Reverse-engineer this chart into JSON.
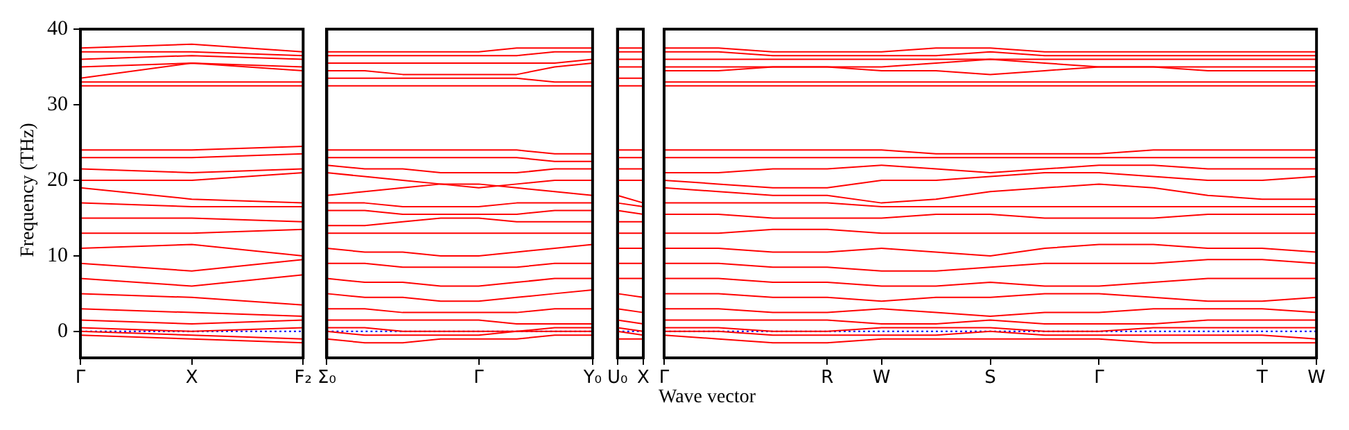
{
  "chart_data": [
    {
      "type": "line",
      "ylabel": "Frequency (THz)",
      "categories": [
        "Γ",
        "X",
        "F₂"
      ],
      "ylim": [
        -3.5,
        40
      ],
      "yticks": [
        0,
        10,
        20,
        30,
        40
      ],
      "legend": false,
      "marker": "none",
      "line_style": "solid",
      "ref_lines": [
        {
          "axis": "y",
          "value": 0,
          "color": "#0000ff",
          "line_style": "dotted"
        }
      ],
      "series": [
        {
          "color": "#ff0000",
          "values": [
            37.5,
            38,
            37
          ]
        },
        {
          "color": "#ff0000",
          "values": [
            37,
            37,
            36.5
          ]
        },
        {
          "color": "#ff0000",
          "values": [
            36,
            36.5,
            36
          ]
        },
        {
          "color": "#ff0000",
          "values": [
            35,
            35.5,
            35
          ]
        },
        {
          "color": "#ff0000",
          "values": [
            33.5,
            35.5,
            34.5
          ]
        },
        {
          "color": "#ff0000",
          "values": [
            33,
            33,
            33
          ]
        },
        {
          "color": "#ff0000",
          "values": [
            32.5,
            32.5,
            32.5
          ]
        },
        {
          "color": "#ff0000",
          "values": [
            24,
            24,
            24.5
          ]
        },
        {
          "color": "#ff0000",
          "values": [
            23,
            23,
            23.5
          ]
        },
        {
          "color": "#ff0000",
          "values": [
            21.5,
            21,
            21.5
          ]
        },
        {
          "color": "#ff0000",
          "values": [
            20,
            20,
            21
          ]
        },
        {
          "color": "#ff0000",
          "values": [
            19,
            17.5,
            17
          ]
        },
        {
          "color": "#ff0000",
          "values": [
            17,
            16.5,
            16.5
          ]
        },
        {
          "color": "#ff0000",
          "values": [
            15,
            15,
            14.5
          ]
        },
        {
          "color": "#ff0000",
          "values": [
            13,
            13,
            13.5
          ]
        },
        {
          "color": "#ff0000",
          "values": [
            11,
            11.5,
            10
          ]
        },
        {
          "color": "#ff0000",
          "values": [
            9,
            8,
            9.5
          ]
        },
        {
          "color": "#ff0000",
          "values": [
            7,
            6,
            7.5
          ]
        },
        {
          "color": "#ff0000",
          "values": [
            5,
            4.5,
            3.5
          ]
        },
        {
          "color": "#ff0000",
          "values": [
            3,
            2.5,
            2
          ]
        },
        {
          "color": "#ff0000",
          "values": [
            1.5,
            1,
            1.5
          ]
        },
        {
          "color": "#ff0000",
          "values": [
            0.5,
            0,
            0.5
          ]
        },
        {
          "color": "#ff0000",
          "values": [
            0,
            -0.5,
            -1
          ]
        },
        {
          "color": "#ff0000",
          "values": [
            -0.5,
            -1,
            -1.5
          ]
        }
      ]
    },
    {
      "type": "line",
      "categories": [
        "Σ₀",
        null,
        null,
        null,
        "Γ",
        null,
        null,
        "Y₀"
      ],
      "ylim": [
        -3.5,
        40
      ],
      "yticks": [
        0,
        10,
        20,
        30,
        40
      ],
      "tick_labels": "x",
      "legend": false,
      "marker": "none",
      "line_style": "solid",
      "ref_lines": [
        {
          "axis": "y",
          "value": 0,
          "color": "#0000ff",
          "line_style": "dotted"
        }
      ],
      "series": [
        {
          "color": "#ff0000",
          "values": [
            37,
            37,
            37,
            37,
            37,
            37.5,
            37.5,
            37.5
          ]
        },
        {
          "color": "#ff0000",
          "values": [
            36.5,
            36.5,
            36.5,
            36.5,
            36.5,
            36.5,
            37,
            37
          ]
        },
        {
          "color": "#ff0000",
          "values": [
            35.5,
            35.5,
            35.5,
            35.5,
            35.5,
            35.5,
            35.5,
            36
          ]
        },
        {
          "color": "#ff0000",
          "values": [
            34.5,
            34.5,
            34,
            34,
            34,
            34,
            35,
            35.5
          ]
        },
        {
          "color": "#ff0000",
          "values": [
            33.5,
            33.5,
            33.5,
            33.5,
            33.5,
            33.5,
            33,
            33
          ]
        },
        {
          "color": "#ff0000",
          "values": [
            32.5,
            32.5,
            32.5,
            32.5,
            32.5,
            32.5,
            32.5,
            32.5
          ]
        },
        {
          "color": "#ff0000",
          "values": [
            24,
            24,
            24,
            24,
            24,
            24,
            23.5,
            23.5
          ]
        },
        {
          "color": "#ff0000",
          "values": [
            23,
            23,
            23,
            23,
            23,
            23,
            22.5,
            22.5
          ]
        },
        {
          "color": "#ff0000",
          "values": [
            22,
            21.5,
            21.5,
            21,
            21,
            21,
            21.5,
            21.5
          ]
        },
        {
          "color": "#ff0000",
          "values": [
            21,
            20.5,
            20,
            19.5,
            19,
            19.5,
            20,
            20
          ]
        },
        {
          "color": "#ff0000",
          "values": [
            18,
            18.5,
            19,
            19.5,
            19.5,
            19,
            18.5,
            18
          ]
        },
        {
          "color": "#ff0000",
          "values": [
            17,
            17,
            16.5,
            16.5,
            16.5,
            17,
            17,
            17
          ]
        },
        {
          "color": "#ff0000",
          "values": [
            16,
            16,
            15.5,
            15.5,
            15.5,
            15.5,
            16,
            16
          ]
        },
        {
          "color": "#ff0000",
          "values": [
            14,
            14,
            14.5,
            15,
            15,
            14.5,
            14.5,
            14.5
          ]
        },
        {
          "color": "#ff0000",
          "values": [
            13,
            13,
            13,
            13,
            13,
            13,
            13,
            13
          ]
        },
        {
          "color": "#ff0000",
          "values": [
            11,
            10.5,
            10.5,
            10,
            10,
            10.5,
            11,
            11.5
          ]
        },
        {
          "color": "#ff0000",
          "values": [
            9,
            9,
            8.5,
            8.5,
            8.5,
            8.5,
            9,
            9
          ]
        },
        {
          "color": "#ff0000",
          "values": [
            7,
            6.5,
            6.5,
            6,
            6,
            6.5,
            7,
            7
          ]
        },
        {
          "color": "#ff0000",
          "values": [
            5,
            4.5,
            4.5,
            4,
            4,
            4.5,
            5,
            5.5
          ]
        },
        {
          "color": "#ff0000",
          "values": [
            3,
            3,
            2.5,
            2.5,
            2.5,
            2.5,
            3,
            3
          ]
        },
        {
          "color": "#ff0000",
          "values": [
            1.5,
            1.5,
            1.5,
            1.5,
            1.5,
            1,
            1,
            1
          ]
        },
        {
          "color": "#ff0000",
          "values": [
            0.5,
            0.5,
            0,
            0,
            0,
            0,
            0.5,
            0.5
          ]
        },
        {
          "color": "#ff0000",
          "values": [
            0,
            -0.5,
            -0.5,
            -0.5,
            -0.5,
            0,
            0,
            0
          ]
        },
        {
          "color": "#ff0000",
          "values": [
            -1,
            -1.5,
            -1.5,
            -1,
            -1,
            -1,
            -0.5,
            -0.5
          ]
        }
      ]
    },
    {
      "type": "line",
      "categories": [
        "U₀",
        "X"
      ],
      "ylim": [
        -3.5,
        40
      ],
      "yticks": [
        0,
        10,
        20,
        30,
        40
      ],
      "tick_labels": "x",
      "legend": false,
      "marker": "none",
      "line_style": "solid",
      "ref_lines": [
        {
          "axis": "y",
          "value": 0,
          "color": "#0000ff",
          "line_style": "dotted"
        }
      ],
      "series": [
        {
          "color": "#ff0000",
          "values": [
            37.5,
            37.5
          ]
        },
        {
          "color": "#ff0000",
          "values": [
            37,
            37
          ]
        },
        {
          "color": "#ff0000",
          "values": [
            36,
            36
          ]
        },
        {
          "color": "#ff0000",
          "values": [
            35,
            35
          ]
        },
        {
          "color": "#ff0000",
          "values": [
            33.5,
            33.5
          ]
        },
        {
          "color": "#ff0000",
          "values": [
            32.5,
            32.5
          ]
        },
        {
          "color": "#ff0000",
          "values": [
            24,
            24
          ]
        },
        {
          "color": "#ff0000",
          "values": [
            23,
            23
          ]
        },
        {
          "color": "#ff0000",
          "values": [
            21.5,
            21.5
          ]
        },
        {
          "color": "#ff0000",
          "values": [
            20,
            20
          ]
        },
        {
          "color": "#ff0000",
          "values": [
            18,
            17
          ]
        },
        {
          "color": "#ff0000",
          "values": [
            17,
            16.5
          ]
        },
        {
          "color": "#ff0000",
          "values": [
            16,
            15.5
          ]
        },
        {
          "color": "#ff0000",
          "values": [
            14.5,
            14.5
          ]
        },
        {
          "color": "#ff0000",
          "values": [
            13,
            13
          ]
        },
        {
          "color": "#ff0000",
          "values": [
            11,
            11
          ]
        },
        {
          "color": "#ff0000",
          "values": [
            9,
            9
          ]
        },
        {
          "color": "#ff0000",
          "values": [
            7,
            7
          ]
        },
        {
          "color": "#ff0000",
          "values": [
            5,
            4.5
          ]
        },
        {
          "color": "#ff0000",
          "values": [
            3,
            2.5
          ]
        },
        {
          "color": "#ff0000",
          "values": [
            1.5,
            1
          ]
        },
        {
          "color": "#ff0000",
          "values": [
            0.5,
            0
          ]
        },
        {
          "color": "#ff0000",
          "values": [
            0,
            -0.5
          ]
        },
        {
          "color": "#ff0000",
          "values": [
            -1,
            -1
          ]
        }
      ]
    },
    {
      "type": "line",
      "xlabel": "Wave vector",
      "categories": [
        "Γ",
        null,
        null,
        "R",
        "W",
        null,
        "S",
        null,
        "Γ",
        null,
        null,
        "T",
        "W"
      ],
      "ylim": [
        -3.5,
        40
      ],
      "yticks": [
        0,
        10,
        20,
        30,
        40
      ],
      "tick_labels": "x",
      "legend": false,
      "marker": "none",
      "line_style": "solid",
      "ref_lines": [
        {
          "axis": "y",
          "value": 0,
          "color": "#0000ff",
          "line_style": "dotted"
        }
      ],
      "series": [
        {
          "color": "#ff0000",
          "values": [
            37.5,
            37.5,
            37,
            37,
            37,
            37.5,
            37.5,
            37,
            37,
            37,
            37,
            37,
            37
          ]
        },
        {
          "color": "#ff0000",
          "values": [
            37,
            37,
            36.5,
            36.5,
            36.5,
            36.5,
            37,
            36.5,
            36.5,
            36.5,
            36.5,
            36.5,
            36.5
          ]
        },
        {
          "color": "#ff0000",
          "values": [
            36,
            36,
            36,
            36,
            36,
            36,
            36,
            36,
            36,
            36,
            36,
            36,
            36
          ]
        },
        {
          "color": "#ff0000",
          "values": [
            35,
            35,
            35,
            35,
            35,
            35.5,
            36,
            35.5,
            35,
            35,
            35,
            35,
            35
          ]
        },
        {
          "color": "#ff0000",
          "values": [
            34.5,
            34.5,
            35,
            35,
            34.5,
            34.5,
            34,
            34.5,
            35,
            35,
            34.5,
            34.5,
            34.5
          ]
        },
        {
          "color": "#ff0000",
          "values": [
            33,
            33,
            33,
            33,
            33,
            33,
            33,
            33,
            33,
            33,
            33,
            33,
            33
          ]
        },
        {
          "color": "#ff0000",
          "values": [
            32.5,
            32.5,
            32.5,
            32.5,
            32.5,
            32.5,
            32.5,
            32.5,
            32.5,
            32.5,
            32.5,
            32.5,
            32.5
          ]
        },
        {
          "color": "#ff0000",
          "values": [
            24,
            24,
            24,
            24,
            24,
            23.5,
            23.5,
            23.5,
            23.5,
            24,
            24,
            24,
            24
          ]
        },
        {
          "color": "#ff0000",
          "values": [
            23,
            23,
            23,
            23,
            23,
            23,
            23,
            23,
            23,
            23,
            23,
            23,
            23
          ]
        },
        {
          "color": "#ff0000",
          "values": [
            21,
            21,
            21.5,
            21.5,
            22,
            21.5,
            21,
            21.5,
            22,
            22,
            21.5,
            21.5,
            21.5
          ]
        },
        {
          "color": "#ff0000",
          "values": [
            20,
            19.5,
            19,
            19,
            20,
            20,
            20.5,
            21,
            21,
            20.5,
            20,
            20,
            20.5
          ]
        },
        {
          "color": "#ff0000",
          "values": [
            19,
            18.5,
            18,
            18,
            17,
            17.5,
            18.5,
            19,
            19.5,
            19,
            18,
            17.5,
            17.5
          ]
        },
        {
          "color": "#ff0000",
          "values": [
            17,
            17,
            17,
            17,
            16.5,
            16.5,
            16.5,
            16.5,
            16.5,
            16.5,
            16.5,
            16.5,
            16.5
          ]
        },
        {
          "color": "#ff0000",
          "values": [
            15.5,
            15.5,
            15,
            15,
            15,
            15.5,
            15.5,
            15,
            15,
            15,
            15.5,
            15.5,
            15.5
          ]
        },
        {
          "color": "#ff0000",
          "values": [
            13,
            13,
            13.5,
            13.5,
            13,
            13,
            13,
            13,
            13,
            13,
            13,
            13,
            13
          ]
        },
        {
          "color": "#ff0000",
          "values": [
            11,
            11,
            10.5,
            10.5,
            11,
            10.5,
            10,
            11,
            11.5,
            11.5,
            11,
            11,
            10.5
          ]
        },
        {
          "color": "#ff0000",
          "values": [
            9,
            9,
            8.5,
            8.5,
            8,
            8,
            8.5,
            9,
            9,
            9,
            9.5,
            9.5,
            9
          ]
        },
        {
          "color": "#ff0000",
          "values": [
            7,
            7,
            6.5,
            6.5,
            6,
            6,
            6.5,
            6,
            6,
            6.5,
            7,
            7,
            7
          ]
        },
        {
          "color": "#ff0000",
          "values": [
            5,
            5,
            4.5,
            4.5,
            4,
            4.5,
            4.5,
            5,
            5,
            4.5,
            4,
            4,
            4.5
          ]
        },
        {
          "color": "#ff0000",
          "values": [
            3,
            3,
            2.5,
            2.5,
            3,
            2.5,
            2,
            2.5,
            2.5,
            3,
            3,
            3,
            2.5
          ]
        },
        {
          "color": "#ff0000",
          "values": [
            1.5,
            1.5,
            1.5,
            1.5,
            1,
            1,
            1.5,
            1,
            1,
            1,
            1.5,
            1.5,
            1.5
          ]
        },
        {
          "color": "#ff0000",
          "values": [
            0.5,
            0.5,
            0,
            0,
            0.5,
            0.5,
            0.5,
            0,
            0,
            0.5,
            0.5,
            0.5,
            0.5
          ]
        },
        {
          "color": "#ff0000",
          "values": [
            0,
            0,
            -0.5,
            -0.5,
            -0.5,
            -0.5,
            0,
            -0.5,
            -0.5,
            -0.5,
            -0.5,
            -0.5,
            -1
          ]
        },
        {
          "color": "#ff0000",
          "values": [
            -0.5,
            -1,
            -1.5,
            -1.5,
            -1,
            -1,
            -1,
            -1,
            -1,
            -1.5,
            -1.5,
            -1.5,
            -1.5
          ]
        }
      ]
    }
  ]
}
